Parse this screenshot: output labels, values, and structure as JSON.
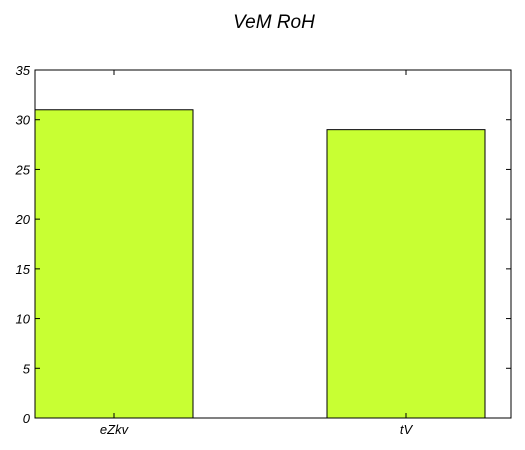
{
  "chart_data": {
    "type": "bar",
    "title": "VeM  RoH",
    "xlabel": "",
    "ylabel": "",
    "categories": [
      "eZkv",
      "tV"
    ],
    "values": [
      31,
      29
    ],
    "ylim": [
      0,
      35
    ],
    "yticks": [
      0,
      5,
      10,
      15,
      20,
      25,
      30,
      35
    ],
    "grid": false,
    "legend": "none",
    "colors": {
      "bar_fill": "#c8ff33",
      "bar_edge": "#000000",
      "axis": "#000000",
      "background": "#ffffff"
    }
  }
}
